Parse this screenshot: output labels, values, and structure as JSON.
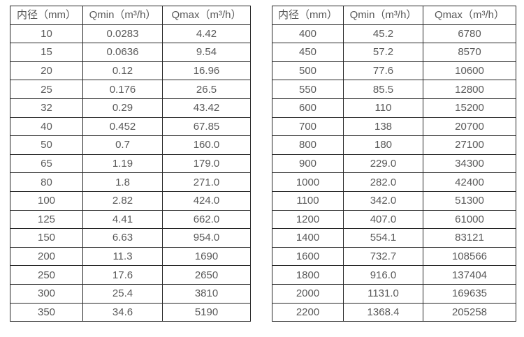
{
  "page": {
    "background_color": "#ffffff",
    "text_color": "#595959",
    "border_color": "#262626"
  },
  "tables": [
    {
      "id": "diameter-flow-table-small",
      "headers": [
        "内径（mm）",
        "Qmin（m³/h）",
        "Qmax（m³/h）"
      ],
      "rows": [
        [
          "10",
          "0.0283",
          "4.42"
        ],
        [
          "15",
          "0.0636",
          "9.54"
        ],
        [
          "20",
          "0.12",
          "16.96"
        ],
        [
          "25",
          "0.176",
          "26.5"
        ],
        [
          "32",
          "0.29",
          "43.42"
        ],
        [
          "40",
          "0.452",
          "67.85"
        ],
        [
          "50",
          "0.7",
          "160.0"
        ],
        [
          "65",
          "1.19",
          "179.0"
        ],
        [
          "80",
          "1.8",
          "271.0"
        ],
        [
          "100",
          "2.82",
          "424.0"
        ],
        [
          "125",
          "4.41",
          "662.0"
        ],
        [
          "150",
          "6.63",
          "954.0"
        ],
        [
          "200",
          "11.3",
          "1690"
        ],
        [
          "250",
          "17.6",
          "2650"
        ],
        [
          "300",
          "25.4",
          "3810"
        ],
        [
          "350",
          "34.6",
          "5190"
        ]
      ]
    },
    {
      "id": "diameter-flow-table-large",
      "headers": [
        "内径（mm）",
        "Qmin（m³/h）",
        "Qmax（m³/h）"
      ],
      "rows": [
        [
          "400",
          "45.2",
          "6780"
        ],
        [
          "450",
          "57.2",
          "8570"
        ],
        [
          "500",
          "77.6",
          "10600"
        ],
        [
          "550",
          "85.5",
          "12800"
        ],
        [
          "600",
          "110",
          "15200"
        ],
        [
          "700",
          "138",
          "20700"
        ],
        [
          "800",
          "180",
          "27100"
        ],
        [
          "900",
          "229.0",
          "34300"
        ],
        [
          "1000",
          "282.0",
          "42400"
        ],
        [
          "1100",
          "342.0",
          "51300"
        ],
        [
          "1200",
          "407.0",
          "61000"
        ],
        [
          "1400",
          "554.1",
          "83121"
        ],
        [
          "1600",
          "732.7",
          "108566"
        ],
        [
          "1800",
          "916.0",
          "137404"
        ],
        [
          "2000",
          "1131.0",
          "169635"
        ],
        [
          "2200",
          "1368.4",
          "205258"
        ]
      ]
    }
  ]
}
